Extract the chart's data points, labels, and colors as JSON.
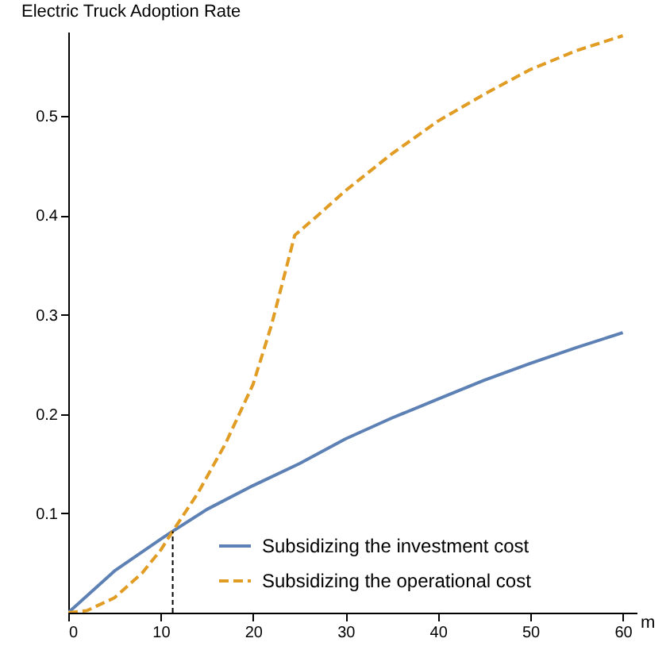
{
  "chart_data": {
    "type": "line",
    "ylabel": "Electric Truck Adoption Rate",
    "xlabel": "m",
    "xlim": [
      0,
      61.5
    ],
    "ylim": [
      0,
      0.585
    ],
    "xticks": [
      0,
      10,
      20,
      30,
      40,
      50,
      60
    ],
    "yticks": [
      0.1,
      0.2,
      0.3,
      0.4,
      0.5
    ],
    "grid": false,
    "legend": "bottom right",
    "series": [
      {
        "name": "Subsidizing the investment cost",
        "color": "#5e81b5",
        "line_style": "solid",
        "x": [
          0,
          5,
          10,
          11.3,
          15,
          20,
          25,
          30,
          35,
          40,
          45,
          50,
          55,
          60
        ],
        "values": [
          0,
          0.042,
          0.074,
          0.082,
          0.104,
          0.128,
          0.15,
          0.175,
          0.196,
          0.215,
          0.234,
          0.251,
          0.267,
          0.282
        ]
      },
      {
        "name": "Subsidizing the operational cost",
        "color": "#e19c24",
        "line_style": "dashed",
        "x": [
          0,
          2,
          5,
          8,
          10,
          11.3,
          14,
          17,
          20,
          22,
          24.5,
          27,
          30,
          35,
          40,
          45,
          50,
          55,
          60
        ],
        "values": [
          0,
          0.002,
          0.015,
          0.04,
          0.063,
          0.082,
          0.12,
          0.17,
          0.23,
          0.29,
          0.38,
          0.4,
          0.425,
          0.462,
          0.495,
          0.522,
          0.547,
          0.566,
          0.581
        ]
      }
    ],
    "ref_lines": [
      {
        "axis": "x",
        "value": 11.3,
        "color": "#000000",
        "line_style": "dashed"
      }
    ]
  }
}
